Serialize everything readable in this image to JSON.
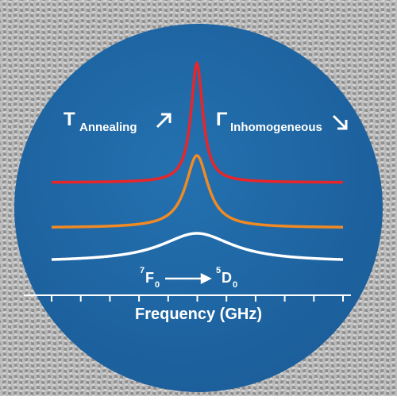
{
  "annotations": {
    "t_symbol": "T",
    "t_subscript": "Annealing",
    "gamma_symbol": "Γ",
    "gamma_subscript": "Inhomogeneous"
  },
  "transition": {
    "lower_superscript": "7",
    "lower_term": "F",
    "lower_subscript": "0",
    "upper_superscript": "5",
    "upper_term": "D",
    "upper_subscript": "0"
  },
  "axis_label": "Frequency (GHz)"
}
